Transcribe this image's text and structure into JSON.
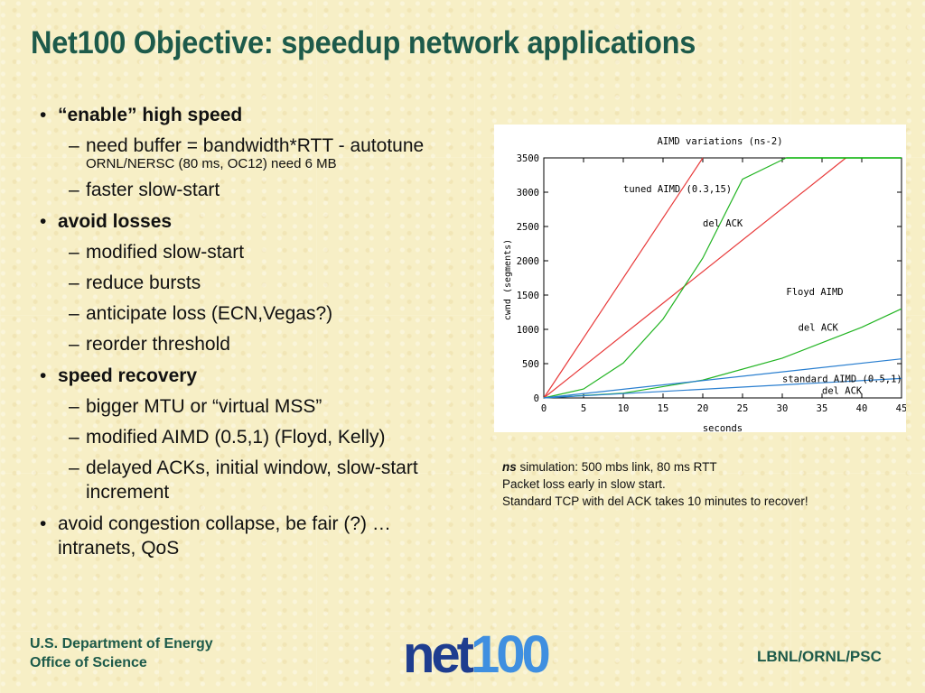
{
  "slide": {
    "title": "Net100 Objective: speedup network applications",
    "bullets": [
      {
        "text": "“enable” high speed",
        "bold": true,
        "subs": [
          {
            "text": "need buffer = bandwidth*RTT - autotune",
            "note": "ORNL/NERSC (80 ms, OC12) need 6 MB"
          },
          {
            "text": "faster slow-start"
          }
        ]
      },
      {
        "text": "avoid losses",
        "bold": true,
        "subs": [
          {
            "text": "modified slow-start"
          },
          {
            "text": "reduce bursts"
          },
          {
            "text": "anticipate loss (ECN,Vegas?)"
          },
          {
            "text": "reorder threshold"
          }
        ]
      },
      {
        "text": "speed recovery",
        "bold": true,
        "subs": [
          {
            "text": "bigger MTU or “virtual MSS”"
          },
          {
            "text": "modified AIMD  (0.5,1) (Floyd, Kelly)"
          },
          {
            "text": "delayed ACKs, initial window, slow-start increment"
          }
        ]
      },
      {
        "text": "avoid congestion collapse, be  fair (?) … intranets, QoS",
        "bold": false,
        "subs": []
      }
    ],
    "caption": {
      "emphasis": "ns",
      "line1": " simulation: 500 mbs link, 80 ms RTT",
      "line2": "Packet  loss early in slow start.",
      "line3": "Standard TCP with del ACK takes 10 minutes to recover!"
    },
    "footer": {
      "org_line1": "U.S. Department of Energy",
      "org_line2": "Office of Science",
      "logo_part1": "net",
      "logo_part2": "100",
      "right": "LBNL/ORNL/PSC"
    }
  },
  "chart_data": {
    "type": "line",
    "title": "AIMD variations (ns-2)",
    "xlabel": "seconds",
    "ylabel": "cwnd (segments)",
    "xlim": [
      0,
      45
    ],
    "ylim": [
      0,
      3500
    ],
    "xticks": [
      0,
      5,
      10,
      15,
      20,
      25,
      30,
      35,
      40,
      45
    ],
    "yticks": [
      0,
      500,
      1000,
      1500,
      2000,
      2500,
      3000,
      3500
    ],
    "grid": false,
    "colors": {
      "red": "#e83a3a",
      "green": "#22b422",
      "blue": "#2a7fd0",
      "cap": "#00b000"
    },
    "series": [
      {
        "name": "tuned AIMD (0.3,15)",
        "color": "red",
        "x": [
          0,
          20
        ],
        "y": [
          0,
          3500
        ]
      },
      {
        "name": "del ACK",
        "color": "red",
        "x": [
          0,
          38
        ],
        "y": [
          0,
          3500
        ]
      },
      {
        "name": "Floyd AIMD",
        "color": "green",
        "x": [
          0,
          5,
          10,
          15,
          20,
          25,
          30.5
        ],
        "y": [
          0,
          130,
          510,
          1150,
          2040,
          3190,
          3500
        ]
      },
      {
        "name": "del ACK",
        "color": "green",
        "x": [
          0,
          10,
          20,
          30,
          40,
          45
        ],
        "y": [
          0,
          70,
          260,
          580,
          1030,
          1300
        ]
      },
      {
        "name": "standard AIMD (0.5,1)",
        "color": "blue",
        "x": [
          0,
          45
        ],
        "y": [
          0,
          570
        ]
      },
      {
        "name": "del ACK",
        "color": "blue",
        "x": [
          0,
          45
        ],
        "y": [
          0,
          285
        ]
      }
    ],
    "cap": {
      "value": 3500,
      "from_x": 30.5,
      "to_x": 45
    },
    "annotations": [
      {
        "text": "tuned AIMD (0.3,15)",
        "x": 10,
        "y": 3000
      },
      {
        "text": "del ACK",
        "x": 20,
        "y": 2500
      },
      {
        "text": "Floyd AIMD",
        "x": 30.5,
        "y": 1500
      },
      {
        "text": "del ACK",
        "x": 32,
        "y": 980
      },
      {
        "text": "standard AIMD (0.5,1)",
        "x": 30,
        "y": 230
      },
      {
        "text": "del ACK",
        "x": 35,
        "y": 60
      }
    ]
  }
}
